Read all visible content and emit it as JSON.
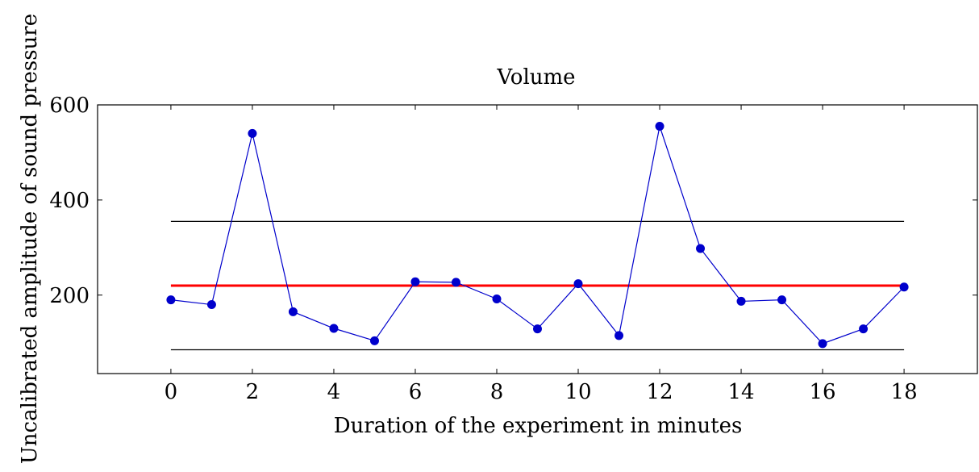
{
  "chart_data": {
    "type": "line",
    "title": "Volume",
    "xlabel": "Duration of the experiment in minutes",
    "ylabel": "Uncalibrated amplitude of sound pressure",
    "xlim": [
      -1.8,
      19.8
    ],
    "ylim": [
      35,
      600
    ],
    "x_ticks": [
      "0",
      "2",
      "4",
      "6",
      "8",
      "10",
      "12",
      "14",
      "16",
      "18"
    ],
    "y_ticks": [
      "200",
      "400",
      "600"
    ],
    "x_tick_values": [
      0,
      2,
      4,
      6,
      8,
      10,
      12,
      14,
      16,
      18
    ],
    "y_tick_values": [
      200,
      400,
      600
    ],
    "grid": false,
    "series": [
      {
        "color": "#0000cc",
        "x": [
          0,
          1,
          2,
          3,
          4,
          5,
          6,
          7,
          8,
          9,
          10,
          11,
          12,
          13,
          14,
          15,
          16,
          17,
          18
        ],
        "values": [
          190,
          180,
          540,
          165,
          130,
          104,
          228,
          227,
          192,
          129,
          224,
          115,
          555,
          298,
          187,
          190,
          98,
          129,
          217
        ]
      }
    ],
    "reference_lines": [
      {
        "role": "mean",
        "color": "#ff0000",
        "x": [
          0,
          18
        ],
        "y": 220
      },
      {
        "role": "upper-limit",
        "color": "#000000",
        "x": [
          0,
          18
        ],
        "y": 355
      },
      {
        "role": "lower-limit",
        "color": "#000000",
        "x": [
          0,
          18
        ],
        "y": 85
      }
    ]
  }
}
